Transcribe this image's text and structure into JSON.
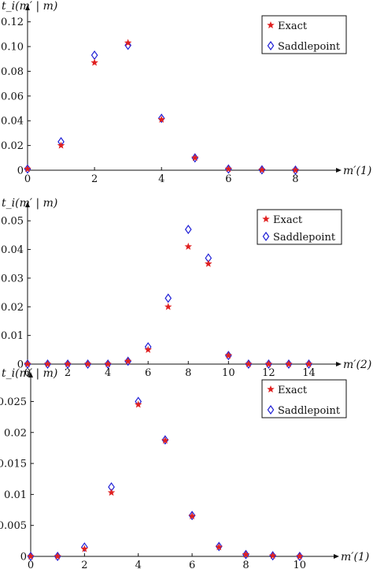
{
  "chart_data": [
    {
      "type": "scatter",
      "ylabel": "t_i(m′ | m)",
      "xlabel": "m′(1)",
      "xlim": [
        0,
        9
      ],
      "ylim": [
        0,
        0.13
      ],
      "xticks": [
        0,
        2,
        4,
        6,
        8
      ],
      "yticks": [
        0,
        0.02,
        0.04,
        0.06,
        0.08,
        0.1,
        0.12
      ],
      "ytick_labels": [
        "0",
        "0.02",
        "0.04",
        "0.06",
        "0.08",
        "0.10",
        "0.12"
      ],
      "legend_position": "top-right",
      "series": [
        {
          "name": "Exact",
          "marker": "star",
          "color": "#e02020",
          "x": [
            0,
            1,
            2,
            3,
            4,
            5,
            6,
            7,
            8
          ],
          "y": [
            0.001,
            0.02,
            0.087,
            0.103,
            0.041,
            0.01,
            0.001,
            0.0003,
            0.0001
          ]
        },
        {
          "name": "Saddlepoint",
          "marker": "diamond",
          "color": "#1f1fd6",
          "x": [
            0,
            1,
            2,
            3,
            4,
            5,
            6,
            7,
            8
          ],
          "y": [
            0.001,
            0.023,
            0.093,
            0.101,
            0.042,
            0.01,
            0.001,
            0.0003,
            0.0001
          ]
        }
      ]
    },
    {
      "type": "scatter",
      "ylabel": "t_i(m′ | m)",
      "xlabel": "m′(2)",
      "xlim": [
        0,
        15
      ],
      "ylim": [
        0,
        0.055
      ],
      "xticks": [
        0,
        2,
        4,
        6,
        8,
        10,
        12,
        14
      ],
      "yticks": [
        0,
        0.01,
        0.02,
        0.03,
        0.04,
        0.05
      ],
      "ytick_labels": [
        "0",
        "0.01",
        "0.02",
        "0.03",
        "0.04",
        "0.05"
      ],
      "legend_position": "top-right",
      "series": [
        {
          "name": "Exact",
          "marker": "star",
          "color": "#e02020",
          "x": [
            0,
            1,
            2,
            3,
            4,
            5,
            6,
            7,
            8,
            9,
            10,
            11,
            12,
            13,
            14
          ],
          "y": [
            0.0,
            0.0,
            0.0,
            0.0,
            0.0,
            0.001,
            0.005,
            0.02,
            0.041,
            0.035,
            0.003,
            0.0,
            0.0,
            0.0,
            0.0
          ]
        },
        {
          "name": "Saddlepoint",
          "marker": "diamond",
          "color": "#1f1fd6",
          "x": [
            0,
            1,
            2,
            3,
            4,
            5,
            6,
            7,
            8,
            9,
            10,
            11,
            12,
            13,
            14
          ],
          "y": [
            0.0,
            0.0,
            0.0,
            0.0,
            0.0,
            0.001,
            0.006,
            0.023,
            0.047,
            0.037,
            0.003,
            0.0,
            0.0,
            0.0,
            0.0
          ]
        }
      ]
    },
    {
      "type": "scatter",
      "ylabel": "t_i(m′ | m)",
      "xlabel": "m′(1)",
      "xlim": [
        0,
        11
      ],
      "ylim": [
        0,
        0.029
      ],
      "xticks": [
        0,
        2,
        4,
        6,
        8,
        10
      ],
      "yticks": [
        0,
        0.005,
        0.01,
        0.015,
        0.02,
        0.025
      ],
      "ytick_labels": [
        "0",
        "0.005",
        "0.01",
        "0.015",
        "0.02",
        "0.025"
      ],
      "legend_position": "top-right",
      "series": [
        {
          "name": "Exact",
          "marker": "star",
          "color": "#e02020",
          "x": [
            0,
            1,
            2,
            3,
            4,
            5,
            6,
            7,
            8,
            9,
            10
          ],
          "y": [
            0.0,
            0.0,
            0.0012,
            0.0103,
            0.0245,
            0.0187,
            0.0065,
            0.0015,
            0.0003,
            0.0001,
            0.0
          ]
        },
        {
          "name": "Saddlepoint",
          "marker": "diamond",
          "color": "#1f1fd6",
          "x": [
            0,
            1,
            2,
            3,
            4,
            5,
            6,
            7,
            8,
            9,
            10
          ],
          "y": [
            0.0,
            0.0,
            0.0015,
            0.0112,
            0.025,
            0.0188,
            0.0066,
            0.0016,
            0.0003,
            0.0001,
            0.0
          ]
        }
      ]
    }
  ]
}
